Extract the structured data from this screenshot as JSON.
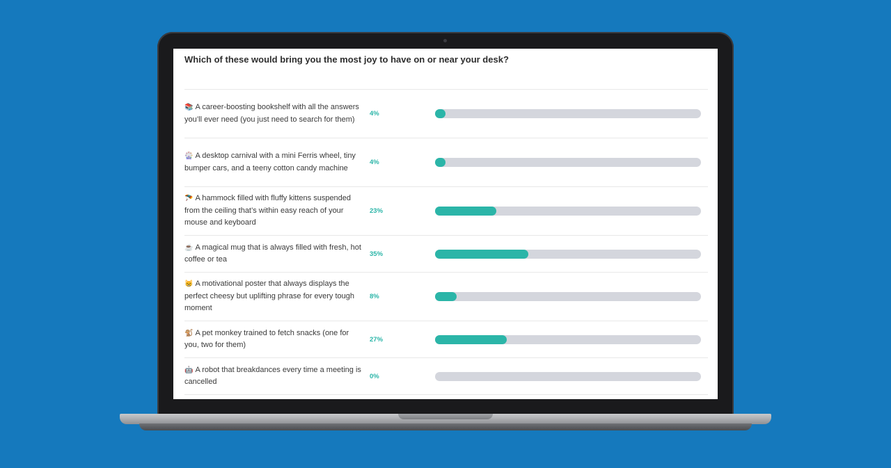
{
  "poll": {
    "question": "Which of these would bring you the most joy to have on or near your desk?",
    "accent_color": "#2bb5a8",
    "track_color": "#d4d6dd",
    "options": [
      {
        "icon": "📚",
        "text": "A career-boosting bookshelf with all the answers you’ll ever need (you just need to search for them)",
        "percent_label": "4%",
        "percent": 4
      },
      {
        "icon": "🎡",
        "text": "A desktop carnival with a mini Ferris wheel, tiny bumper cars, and a teeny cotton candy machine",
        "percent_label": "4%",
        "percent": 4
      },
      {
        "icon": "🪂",
        "text": "A hammock filled with fluffy kittens suspended from the ceiling that’s within easy reach of your mouse and keyboard",
        "percent_label": "23%",
        "percent": 23
      },
      {
        "icon": "☕",
        "text": "A magical mug that is always filled with fresh, hot coffee or tea",
        "percent_label": "35%",
        "percent": 35
      },
      {
        "icon": "😸",
        "text": "A motivational poster that always displays the perfect cheesy but uplifting phrase for every tough moment",
        "percent_label": "8%",
        "percent": 8
      },
      {
        "icon": "🐒",
        "text": "A pet monkey trained to fetch snacks (one for you, two for them)",
        "percent_label": "27%",
        "percent": 27
      },
      {
        "icon": "🤖",
        "text": "A robot that breakdances every time a meeting is cancelled",
        "percent_label": "0%",
        "percent": 0
      }
    ]
  }
}
